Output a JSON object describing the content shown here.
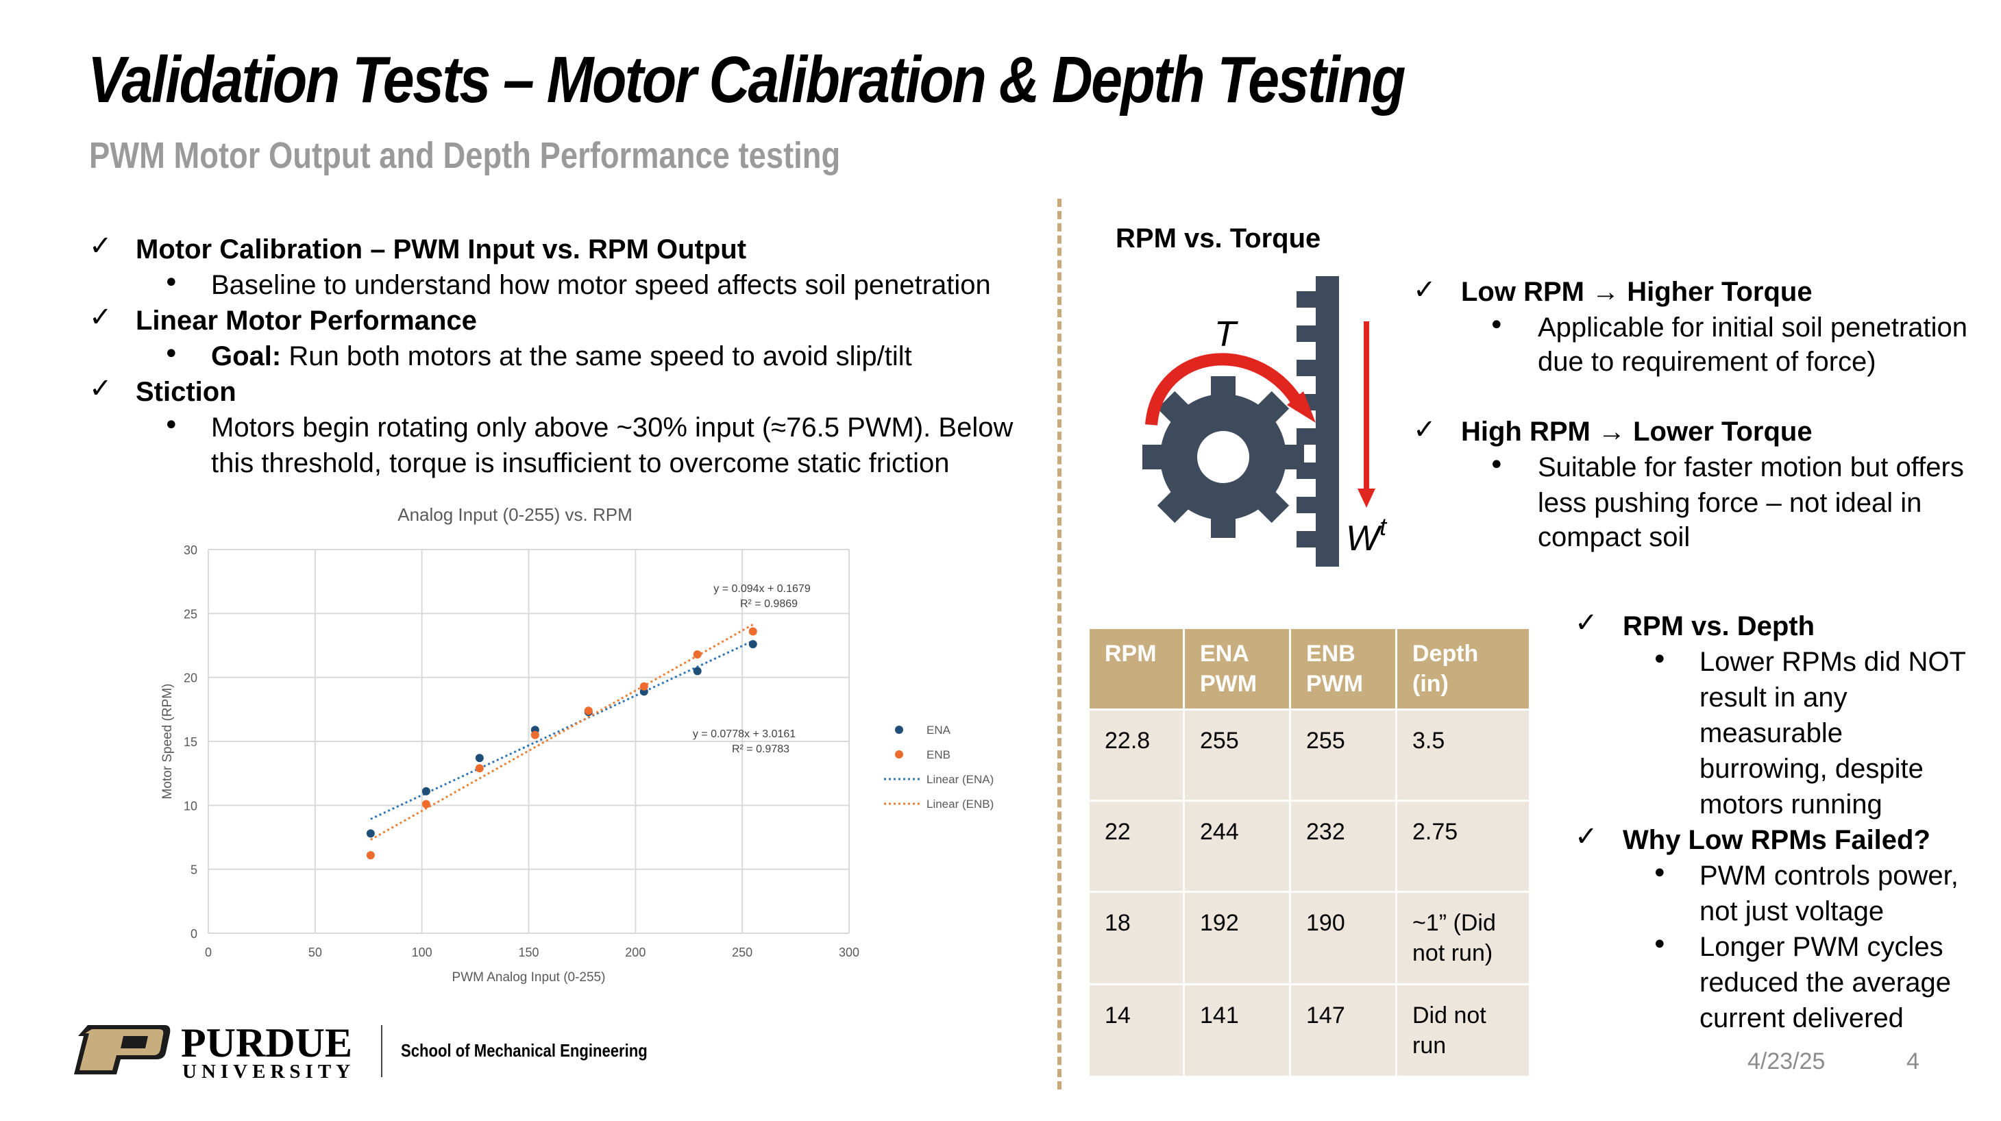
{
  "title": "Validation Tests – Motor Calibration & Depth Testing",
  "subtitle": "PWM Motor Output and Depth Performance testing",
  "left": {
    "items": [
      {
        "check": "Motor Calibration – PWM Input vs. RPM Output",
        "sub": "Baseline to understand how motor speed affects soil penetration"
      },
      {
        "check": "Linear Motor Performance",
        "sub_bold": "Goal:",
        "sub": " Run both motors at the same speed to avoid slip/tilt"
      },
      {
        "check": "Stiction",
        "sub1": "Motors begin rotating only above ~30% input (≈76.5 PWM). Below",
        "sub2": "this threshold, torque is insufficient to overcome static friction"
      }
    ]
  },
  "chart_data": {
    "type": "scatter",
    "title": "Analog Input (0-255) vs. RPM",
    "xlabel": "PWM Analog Input (0-255)",
    "ylabel": "Motor Speed (RPM)",
    "xlim": [
      0,
      300
    ],
    "ylim": [
      0,
      30
    ],
    "xticks": [
      0,
      50,
      100,
      150,
      200,
      250,
      300
    ],
    "yticks": [
      0,
      5,
      10,
      15,
      20,
      25,
      30
    ],
    "grid": true,
    "legend_position": "right",
    "series": [
      {
        "name": "ENA",
        "color": "#1f4e79",
        "x": [
          76,
          102,
          127,
          153,
          178,
          204,
          229,
          255
        ],
        "y": [
          7.8,
          11.1,
          13.7,
          15.9,
          17.3,
          18.9,
          20.5,
          22.6
        ]
      },
      {
        "name": "ENB",
        "color": "#ed6b2c",
        "x": [
          76,
          102,
          127,
          153,
          178,
          204,
          229,
          255
        ],
        "y": [
          6.1,
          10.1,
          12.9,
          15.5,
          17.4,
          19.3,
          21.8,
          23.6
        ]
      }
    ],
    "trendlines": [
      {
        "name": "Linear (ENA)",
        "color": "#2e75b6",
        "slope": 0.0778,
        "intercept": 3.0161,
        "x_range": [
          76,
          255
        ],
        "equation": "y = 0.0778x + 3.0161",
        "r2": "R² = 0.9783"
      },
      {
        "name": "Linear (ENB)",
        "color": "#ed7d31",
        "slope": 0.094,
        "intercept": 0.1679,
        "x_range": [
          76,
          255
        ],
        "equation": "y = 0.094x + 0.1679",
        "r2": "R² = 0.9869"
      }
    ]
  },
  "diagram": {
    "heading": "RPM vs. Torque",
    "torque_symbol": "T",
    "force_symbol": "W",
    "force_superscript": "t",
    "gear_color": "#3d4b5c",
    "arrow_color": "#e0261f"
  },
  "right": {
    "low_title": "Low RPM → Higher Torque",
    "low_sub1": "Applicable for initial soil penetration",
    "low_sub2": "due to requirement of force)",
    "high_title": "High RPM → Lower Torque",
    "high_sub1": "Suitable for faster motion but offers",
    "high_sub2": "less pushing force – not ideal in",
    "high_sub3": "compact soil"
  },
  "table": {
    "headers": [
      "RPM",
      "ENA\nPWM",
      "ENB\nPWM",
      "Depth (in)"
    ],
    "rows": [
      [
        "22.8",
        "255",
        "255",
        "3.5"
      ],
      [
        "22",
        "244",
        "232",
        "2.75"
      ],
      [
        "18",
        "192",
        "190",
        "~1” (Did\nnot run)"
      ],
      [
        "14",
        "141",
        "147",
        "Did not\nrun"
      ]
    ]
  },
  "depth": {
    "title": "RPM vs. Depth",
    "sub": [
      "Lower RPMs did NOT",
      "result in any",
      "measurable",
      "burrowing, despite",
      "motors running"
    ],
    "why_title": "Why Low RPMs Failed?",
    "why1": [
      "PWM controls power,",
      "not just voltage"
    ],
    "why2": [
      "Longer PWM cycles",
      "reduced the average",
      "current delivered"
    ]
  },
  "footer": {
    "logo_main": "PURDUE",
    "logo_sub": "UNIVERSITY",
    "school": "School of Mechanical Engineering",
    "date": "4/23/25",
    "page": "4"
  },
  "colors": {
    "accent": "#c8ad7f",
    "table_cell": "#ede6dc",
    "subtitle": "#9a9a9a"
  }
}
